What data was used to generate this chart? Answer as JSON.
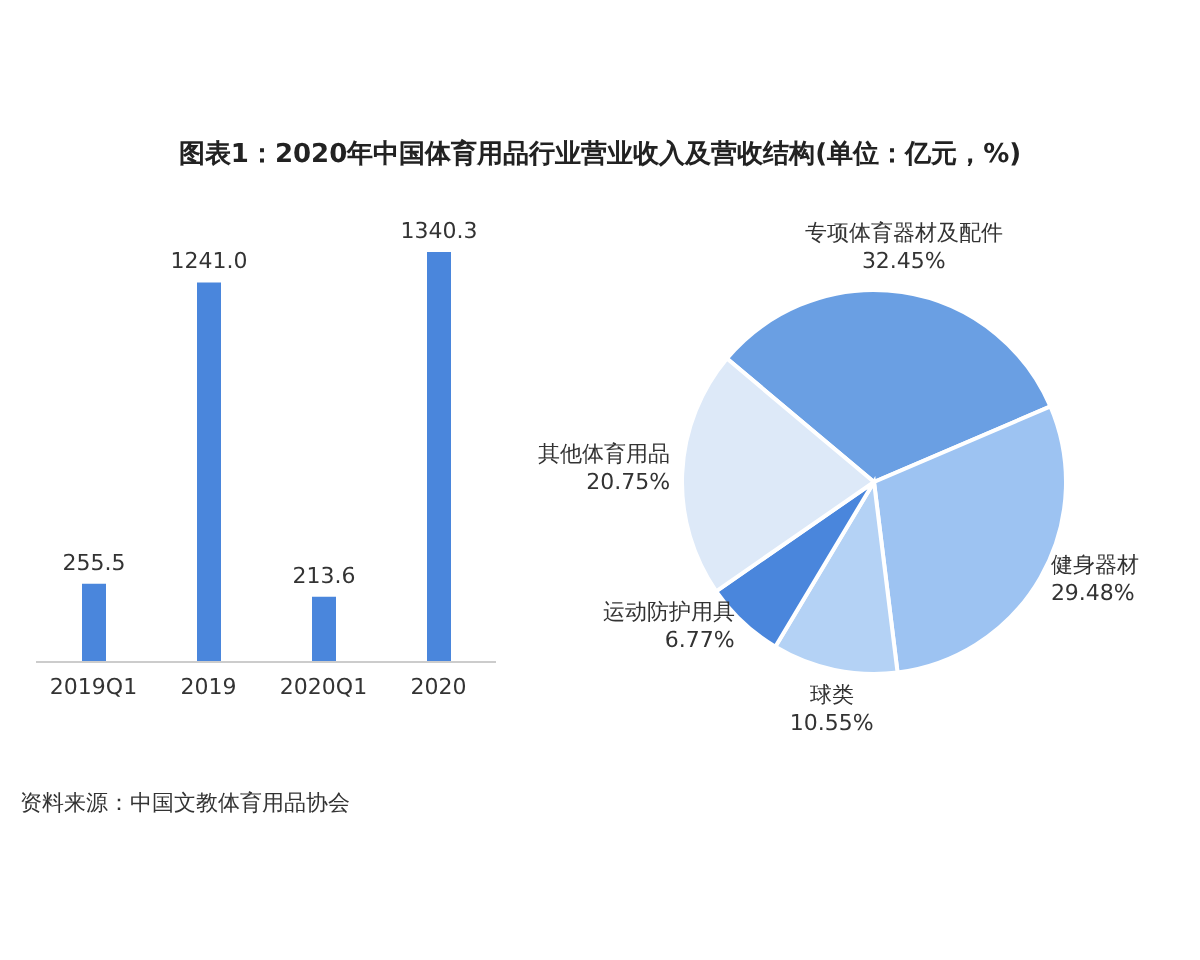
{
  "chart_data": [
    {
      "type": "bar",
      "title": "图表1：2020年中国体育用品行业营业收入及营收结构(单位：亿元，%)",
      "categories": [
        "2019Q1",
        "2019",
        "2020Q1",
        "2020"
      ],
      "values": [
        255.5,
        1241.0,
        213.6,
        1340.3
      ],
      "value_labels": [
        "255.5",
        "1241.0",
        "213.6",
        "1340.3"
      ],
      "color": "#4a86dc",
      "annotations": [
        "资料来源：中国文教体育用品协会"
      ]
    },
    {
      "type": "pie",
      "categories": [
        "专项体育器材及配件",
        "健身器材",
        "球类",
        "运动防护用具",
        "其他体育用品"
      ],
      "values": [
        32.45,
        29.48,
        10.55,
        6.77,
        20.75
      ],
      "value_labels": [
        "32.45%",
        "29.48%",
        "10.55%",
        "6.77%",
        "20.75%"
      ],
      "colors": [
        "#6a9fe3",
        "#9dc3f2",
        "#b4d2f5",
        "#4a86dc",
        "#dde9f8"
      ]
    }
  ]
}
